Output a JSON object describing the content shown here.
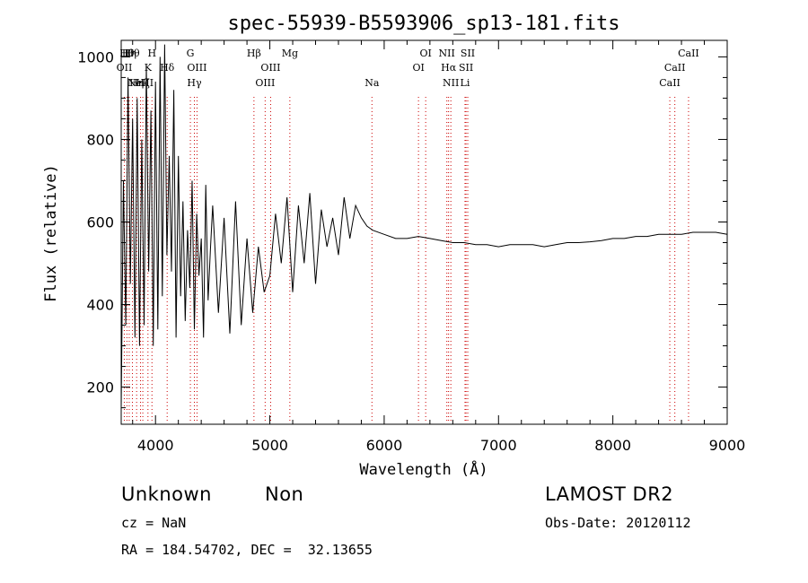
{
  "chart_data": {
    "type": "line",
    "title": "spec-55939-B5593906_sp13-181.fits",
    "xlabel": "Wavelength (Å)",
    "ylabel": "Flux (relative)",
    "xlim": [
      3700,
      9000
    ],
    "ylim": [
      110,
      1040
    ],
    "grid": false,
    "line_color": "#000000",
    "marker_color": "#cc0000",
    "x_ticks": [
      4000,
      5000,
      6000,
      7000,
      8000,
      9000
    ],
    "x_tick_labels": [
      "4000",
      "5000",
      "6000",
      "7000",
      "8000",
      "9000"
    ],
    "y_ticks": [
      200,
      400,
      600,
      800,
      1000
    ],
    "y_tick_labels": [
      "200",
      "400",
      "600",
      "800",
      "1000"
    ],
    "series": [
      {
        "x": [
          3700,
          3720,
          3740,
          3760,
          3780,
          3800,
          3820,
          3840,
          3860,
          3880,
          3900,
          3920,
          3940,
          3960,
          3980,
          4000,
          4020,
          4040,
          4060,
          4080,
          4100,
          4120,
          4140,
          4160,
          4180,
          4200,
          4220,
          4240,
          4260,
          4280,
          4300,
          4320,
          4340,
          4360,
          4380,
          4400,
          4420,
          4440,
          4460,
          4480,
          4500,
          4550,
          4600,
          4650,
          4700,
          4750,
          4800,
          4850,
          4900,
          4950,
          5000,
          5050,
          5100,
          5150,
          5200,
          5250,
          5300,
          5350,
          5400,
          5450,
          5500,
          5550,
          5600,
          5650,
          5700,
          5750,
          5800,
          5850,
          5900,
          6000,
          6100,
          6200,
          6300,
          6400,
          6500,
          6600,
          6700,
          6800,
          6900,
          7000,
          7100,
          7200,
          7300,
          7400,
          7500,
          7600,
          7700,
          7800,
          7900,
          8000,
          8100,
          8200,
          8300,
          8400,
          8500,
          8600,
          8700,
          8800,
          8900,
          9000
        ],
        "y": [
          150,
          700,
          350,
          950,
          450,
          850,
          320,
          900,
          300,
          800,
          350,
          980,
          480,
          870,
          300,
          940,
          340,
          1000,
          420,
          1030,
          520,
          760,
          480,
          920,
          320,
          760,
          420,
          650,
          360,
          580,
          440,
          700,
          340,
          620,
          470,
          560,
          320,
          690,
          410,
          530,
          640,
          380,
          610,
          330,
          650,
          350,
          560,
          380,
          540,
          430,
          470,
          620,
          500,
          660,
          430,
          640,
          500,
          670,
          450,
          630,
          540,
          610,
          520,
          660,
          560,
          640,
          610,
          590,
          580,
          570,
          560,
          560,
          565,
          560,
          555,
          550,
          550,
          545,
          545,
          540,
          545,
          545,
          545,
          540,
          545,
          550,
          550,
          552,
          555,
          560,
          560,
          565,
          565,
          570,
          570,
          570,
          575,
          575,
          575,
          570
        ]
      }
    ],
    "line_markers": [
      {
        "x": 3727,
        "label": "OII",
        "row": 1
      },
      {
        "x": 3750,
        "label": "Hθ",
        "row": 0
      },
      {
        "x": 3770,
        "label": "Hη",
        "row": 0
      },
      {
        "x": 3798,
        "label": "Hθ",
        "row": 0
      },
      {
        "x": 3835,
        "label": "Hη",
        "row": 2
      },
      {
        "x": 3869,
        "label": "NeIII",
        "row": 2
      },
      {
        "x": 3889,
        "label": "Hζ",
        "row": 2
      },
      {
        "x": 3934,
        "label": "K",
        "row": 1
      },
      {
        "x": 3969,
        "label": "H",
        "row": 0
      },
      {
        "x": 4102,
        "label": "Hδ",
        "row": 1
      },
      {
        "x": 4305,
        "label": "G",
        "row": 0
      },
      {
        "x": 4340,
        "label": "Hγ",
        "row": 2
      },
      {
        "x": 4363,
        "label": "OIII",
        "row": 1
      },
      {
        "x": 4861,
        "label": "Hβ",
        "row": 0
      },
      {
        "x": 4959,
        "label": "OIII",
        "row": 2
      },
      {
        "x": 5007,
        "label": "OIII",
        "row": 1
      },
      {
        "x": 5175,
        "label": "Mg",
        "row": 0
      },
      {
        "x": 5893,
        "label": "Na",
        "row": 2
      },
      {
        "x": 6300,
        "label": "OI",
        "row": 1
      },
      {
        "x": 6363,
        "label": "OI",
        "row": 0
      },
      {
        "x": 6548,
        "label": "NII",
        "row": 0
      },
      {
        "x": 6563,
        "label": "Hα",
        "row": 1
      },
      {
        "x": 6583,
        "label": "NII",
        "row": 2
      },
      {
        "x": 6716,
        "label": "SII",
        "row": 1
      },
      {
        "x": 6707,
        "label": "Li",
        "row": 2
      },
      {
        "x": 6731,
        "label": "SII",
        "row": 0
      },
      {
        "x": 8498,
        "label": "CaII",
        "row": 2
      },
      {
        "x": 8542,
        "label": "CaII",
        "row": 1
      },
      {
        "x": 8662,
        "label": "CaII",
        "row": 0
      }
    ]
  },
  "info": {
    "object_class": "Unknown",
    "subclass": "Non",
    "survey": "LAMOST DR2",
    "cz": "cz = NaN",
    "obs_date": "Obs-Date: 20120112",
    "coords": "RA = 184.54702, DEC =  32.13655"
  }
}
